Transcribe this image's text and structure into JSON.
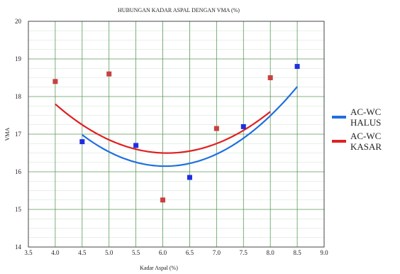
{
  "chart_data": {
    "type": "scatter",
    "title": "HUBUNGAN KADAR ASPAL DENGAN VMA (%)",
    "xlabel": "Kadar Aspal (%)",
    "ylabel": "VMA",
    "xlim": [
      3.5,
      9.0
    ],
    "ylim": [
      14,
      20
    ],
    "xticks": [
      "3.5",
      "4.0",
      "4.5",
      "5.0",
      "5.5",
      "6.0",
      "6.5",
      "7.0",
      "7.5",
      "8.0",
      "8.5",
      "9.0"
    ],
    "yticks": [
      "14",
      "15",
      "16",
      "17",
      "18",
      "19",
      "20"
    ],
    "grid": true,
    "legend_position": "right",
    "series": [
      {
        "name": "AC-WC HALUS",
        "color": "#1f6fe0",
        "marker_color": "#1f2ee0",
        "points": [
          [
            4.5,
            16.8
          ],
          [
            5.5,
            16.7
          ],
          [
            6.5,
            15.85
          ],
          [
            7.5,
            17.2
          ],
          [
            8.5,
            18.8
          ]
        ],
        "trend": {
          "x_range": [
            4.5,
            8.5
          ],
          "coefficients": [
            0.35,
            -4.23,
            28.93
          ]
        }
      },
      {
        "name": "AC-WC KASAR",
        "color": "#e02020",
        "marker_color": "#c84040",
        "points": [
          [
            4.0,
            18.4
          ],
          [
            5.0,
            18.6
          ],
          [
            6.0,
            15.25
          ],
          [
            7.0,
            17.15
          ],
          [
            8.0,
            18.5
          ]
        ],
        "trend": {
          "x_range": [
            4.0,
            8.0
          ],
          "coefficients": [
            0.3,
            -3.65,
            27.6
          ]
        }
      }
    ]
  }
}
